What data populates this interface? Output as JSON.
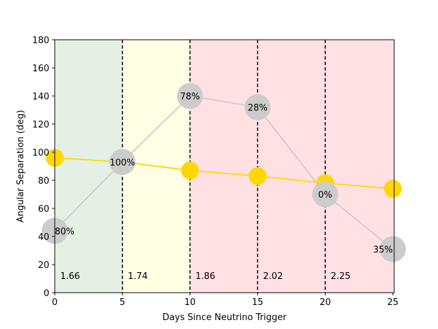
{
  "chart_data": {
    "type": "line",
    "xlabel": "Days Since Neutrino Trigger",
    "ylabel": "Angular Separation (deg)",
    "xlim": [
      0,
      25.1
    ],
    "ylim": [
      0,
      180
    ],
    "xticks": [
      "0",
      "5",
      "10",
      "15",
      "20",
      "25"
    ],
    "yticks": [
      "0",
      "20",
      "40",
      "60",
      "80",
      "100",
      "120",
      "140",
      "160",
      "180"
    ],
    "grid": false,
    "shaded_regions": [
      {
        "from": 0,
        "to": 5,
        "color": "#e3f0e3"
      },
      {
        "from": 5,
        "to": 10,
        "color": "#feffe3"
      },
      {
        "from": 10,
        "to": 25.1,
        "color": "#ffe1e3"
      }
    ],
    "vertical_lines": [
      {
        "x": 5,
        "label": "1.74"
      },
      {
        "x": 10,
        "label": "1.86"
      },
      {
        "x": 15,
        "label": "2.02"
      },
      {
        "x": 20,
        "label": "2.25"
      }
    ],
    "region_labels": [
      {
        "x": 0,
        "label": "1.66"
      }
    ],
    "series": [
      {
        "color": "#ffd700",
        "x": [
          0,
          5,
          10,
          15,
          20,
          25
        ],
        "y": [
          96,
          93,
          87,
          83,
          78,
          74
        ]
      },
      {
        "color": "#cccccc",
        "x": [
          0,
          5,
          10,
          15,
          20,
          25
        ],
        "y": [
          44,
          93,
          140,
          132,
          70,
          31
        ],
        "labels": [
          "80%",
          "100%",
          "78%",
          "28%",
          "0%",
          "35%"
        ]
      }
    ]
  }
}
